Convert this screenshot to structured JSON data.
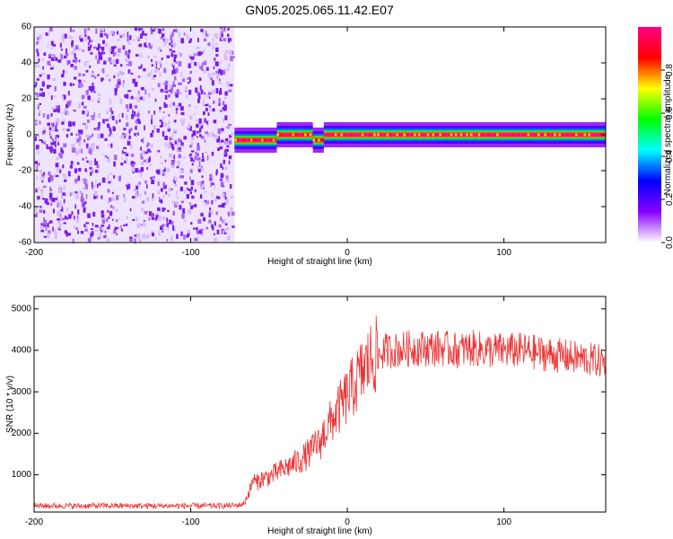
{
  "figure": {
    "title": "GN05.2025.065.11.42.E07"
  },
  "chart_data": [
    {
      "type": "heatmap",
      "title": "GN05.2025.065.11.42.E07",
      "xlabel": "Height of straight line (km)",
      "ylabel": "Frequency (Hz)",
      "xlim": [
        -200,
        165
      ],
      "ylim": [
        -60,
        60
      ],
      "x_ticks": [
        -200,
        -100,
        0,
        100
      ],
      "y_ticks": [
        -60,
        -40,
        -20,
        0,
        20,
        40,
        60
      ],
      "colorbar": {
        "label": "Normalized spectral amplitude",
        "range": [
          0.0,
          1.0
        ],
        "ticks": [
          0.0,
          0.2,
          0.4,
          0.6,
          0.8
        ],
        "colors": [
          "#ffffff",
          "#8800ff",
          "#0000ff",
          "#00ffff",
          "#00ff00",
          "#ffff00",
          "#ff0000",
          "#ff0088"
        ]
      },
      "regions": [
        {
          "x_range": [
            -200,
            -72
          ],
          "freq_range": [
            -60,
            60
          ],
          "amplitude": 0.1,
          "description": "broadband noise"
        },
        {
          "x_range": [
            -72,
            -45
          ],
          "freq_center": -3,
          "amplitude": 0.95
        },
        {
          "x_range": [
            -45,
            -22
          ],
          "freq_center": 0,
          "amplitude": 0.95
        },
        {
          "x_range": [
            -22,
            -15
          ],
          "freq_center": -3,
          "amplitude": 0.9
        },
        {
          "x_range": [
            -15,
            165
          ],
          "freq_center": 0,
          "amplitude": 1.0
        }
      ]
    },
    {
      "type": "line",
      "xlabel": "Height of straight line (km)",
      "ylabel": "SNR (10 * v/v)",
      "xlim": [
        -200,
        165
      ],
      "ylim": [
        100,
        5300
      ],
      "x_ticks": [
        -200,
        -100,
        0,
        100
      ],
      "y_ticks": [
        1000,
        2000,
        3000,
        4000,
        5000
      ],
      "series": [
        {
          "color": "#ee3333",
          "x": [
            -200,
            -180,
            -160,
            -140,
            -120,
            -100,
            -80,
            -70,
            -66,
            -62,
            -60,
            -58,
            -55,
            -50,
            -45,
            -40,
            -35,
            -30,
            -25,
            -22,
            -20,
            -18,
            -15,
            -10,
            -5,
            0,
            5,
            10,
            15,
            20,
            25,
            30,
            40,
            50,
            60,
            70,
            80,
            90,
            100,
            110,
            120,
            130,
            140,
            150,
            160,
            165
          ],
          "y": [
            250,
            250,
            250,
            250,
            250,
            250,
            250,
            260,
            300,
            650,
            900,
            800,
            900,
            950,
            1050,
            1150,
            1250,
            1350,
            1500,
            1600,
            1800,
            1700,
            2000,
            2300,
            2600,
            2900,
            3200,
            3500,
            3800,
            3900,
            4000,
            4000,
            4050,
            4050,
            4050,
            4000,
            4050,
            4000,
            4000,
            4000,
            3950,
            3900,
            3850,
            3800,
            3750,
            3700
          ]
        }
      ]
    }
  ]
}
